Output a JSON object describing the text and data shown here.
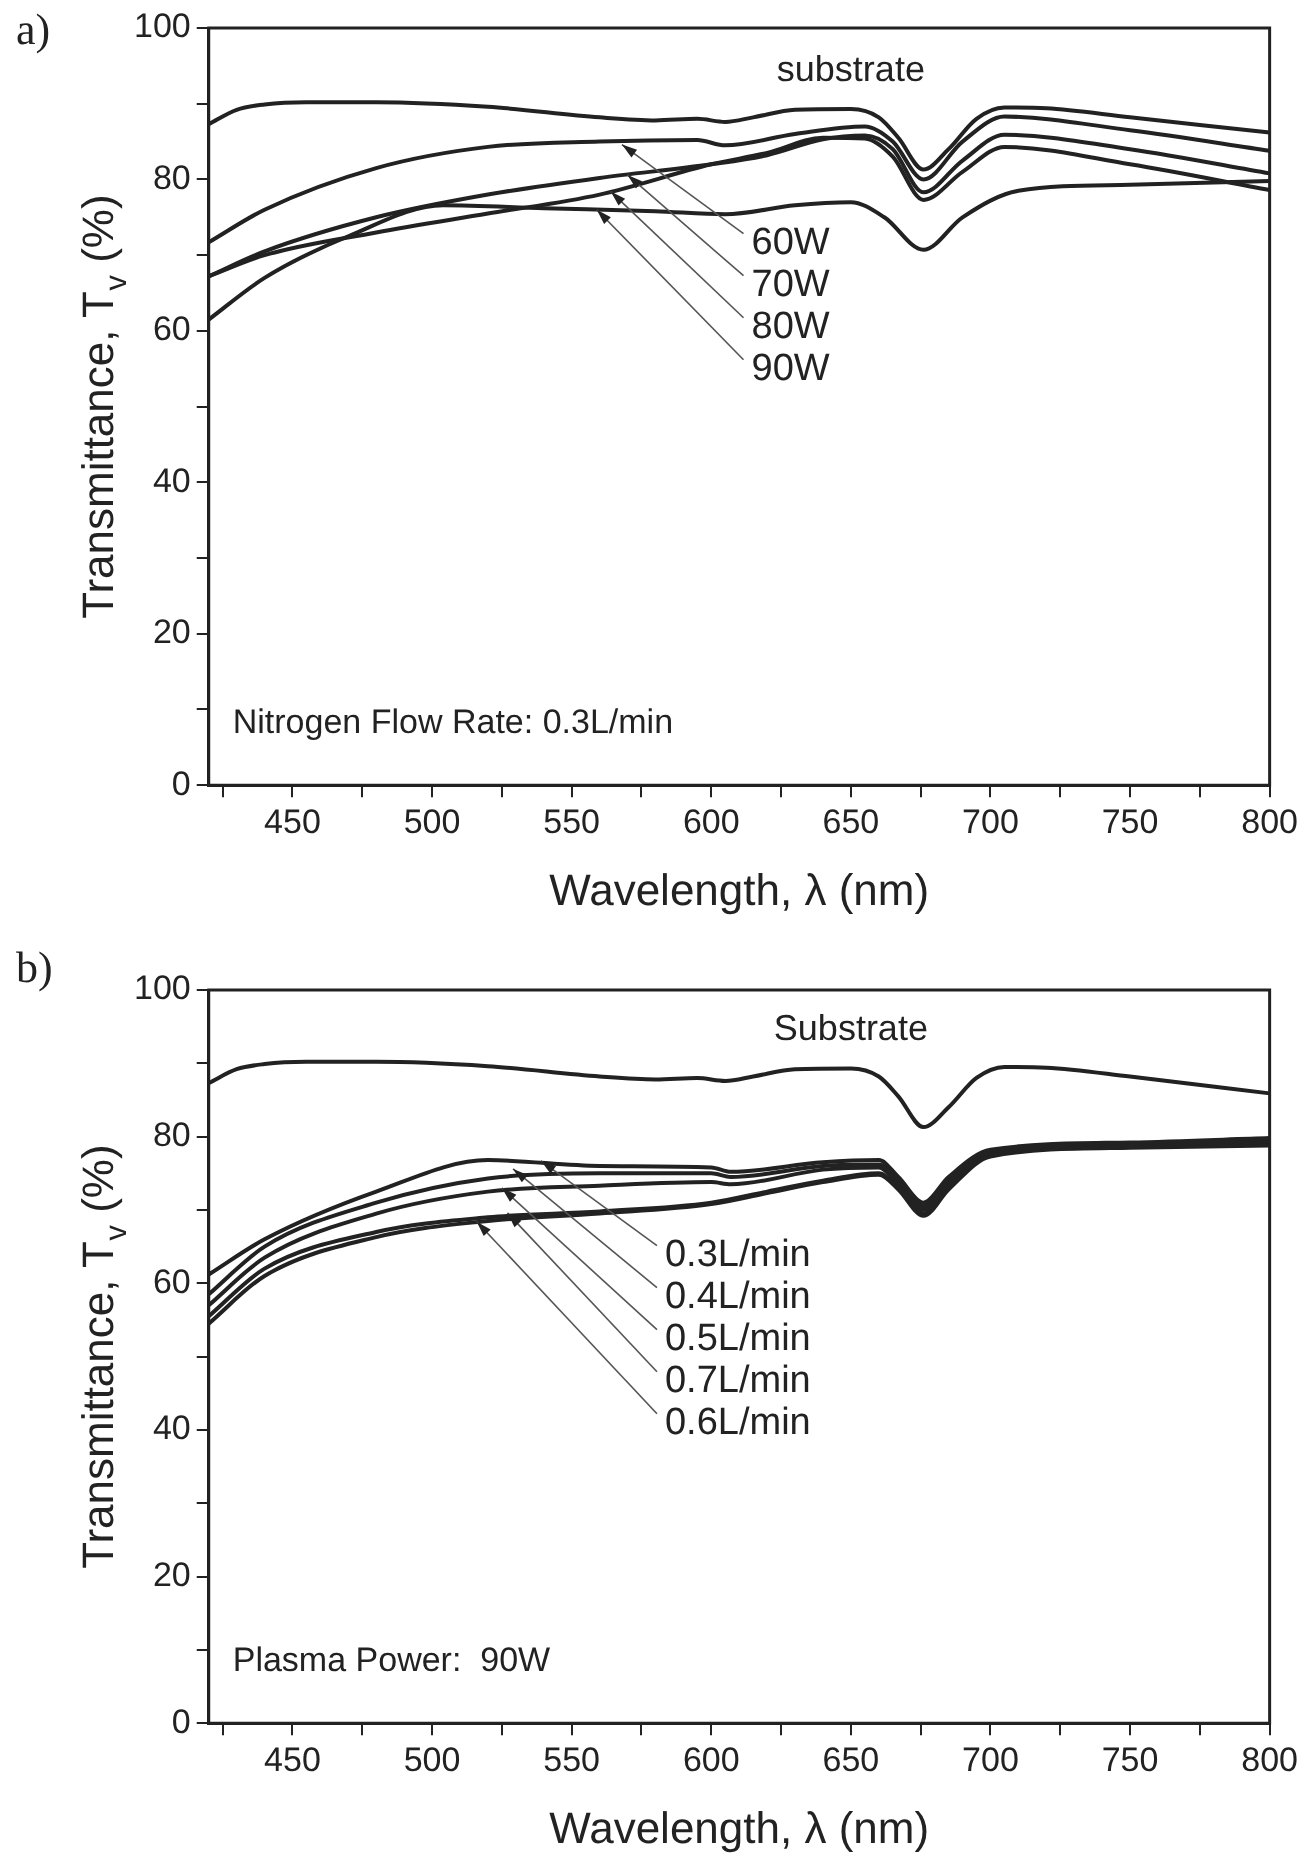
{
  "chart_data": [
    {
      "type": "line",
      "title": "a)",
      "xlabel": "Wavelength, λ (nm)",
      "ylabel": "Transmittance, T$_{v}$ (%)",
      "xlim": [
        420,
        800
      ],
      "ylim": [
        0,
        100
      ],
      "xticks": [
        {
          "value": 425,
          "label": null
        },
        450,
        {
          "value": 475,
          "label": null
        },
        500,
        {
          "value": 525,
          "label": null
        },
        550,
        {
          "value": 575,
          "label": null
        },
        600,
        {
          "value": 625,
          "label": null
        },
        650,
        {
          "value": 675,
          "label": null
        },
        700,
        {
          "value": 725,
          "label": null
        },
        750,
        {
          "value": 775,
          "label": null
        },
        800
      ],
      "yticks": [
        0,
        {
          "value": 10,
          "label": null
        },
        20,
        {
          "value": 30,
          "label": null
        },
        40,
        {
          "value": 50,
          "label": null
        },
        60,
        {
          "value": 70,
          "label": null
        },
        80,
        {
          "value": 90,
          "label": null
        },
        100
      ],
      "grid": false,
      "legend": false,
      "series": [
        {
          "name": "substrate",
          "color": "#222222",
          "x": [
            420,
            430,
            440,
            455,
            480,
            520,
            560,
            580,
            595,
            605,
            615,
            630,
            650,
            660,
            667,
            676,
            685,
            695,
            705,
            720,
            750,
            800
          ],
          "values": [
            87.3,
            89.2,
            89.9,
            90.2,
            90.2,
            89.6,
            88.2,
            87.8,
            88.0,
            87.6,
            88.2,
            89.2,
            89.3,
            88.2,
            85.5,
            81.3,
            84.0,
            88.0,
            89.5,
            89.4,
            88.2,
            86.2
          ]
        },
        {
          "color": "#222222",
          "x": [
            420,
            440,
            480,
            520,
            560,
            595,
            605,
            630,
            655,
            665,
            676,
            690,
            705,
            750,
            800
          ],
          "values": [
            71.7,
            76.0,
            81.5,
            84.3,
            85.0,
            85.2,
            84.5,
            86.0,
            87.0,
            85.0,
            80.0,
            85.0,
            88.3,
            86.5,
            83.8
          ]
        },
        {
          "color": "#222222",
          "x": [
            420,
            440,
            480,
            520,
            560,
            600,
            620,
            640,
            655,
            665,
            676,
            690,
            705,
            750,
            800
          ],
          "values": [
            67.2,
            70.5,
            75.0,
            78.0,
            80.2,
            82.0,
            83.2,
            85.3,
            85.8,
            84.0,
            78.3,
            82.5,
            85.9,
            84.0,
            80.8
          ]
        },
        {
          "color": "#222222",
          "x": [
            420,
            440,
            480,
            520,
            560,
            600,
            620,
            640,
            655,
            665,
            676,
            690,
            705,
            750,
            800
          ],
          "values": [
            67.2,
            70.0,
            73.0,
            75.5,
            78.0,
            82.0,
            83.5,
            85.5,
            85.4,
            83.0,
            77.3,
            81.0,
            84.3,
            82.0,
            78.6
          ]
        },
        {
          "color": "#222222",
          "x": [
            420,
            440,
            470,
            504,
            540,
            580,
            605,
            630,
            650,
            662,
            676,
            690,
            710,
            750,
            800
          ],
          "values": [
            61.5,
            67.0,
            72.5,
            76.6,
            76.2,
            75.8,
            75.4,
            76.6,
            77.0,
            75.0,
            70.7,
            75.0,
            78.5,
            79.3,
            79.8
          ]
        }
      ],
      "annotations": [
        {
          "text": "60W",
          "x": 568,
          "y": 84.6
        },
        {
          "text": "70W",
          "x": 570,
          "y": 80.6
        },
        {
          "text": "80W",
          "x": 564,
          "y": 78.4
        },
        {
          "text": "90W",
          "x": 559,
          "y": 76.0
        },
        "Nitrogen Flow Rate: 0.3L/min"
      ]
    },
    {
      "type": "line",
      "title": "b)",
      "xlabel": "Wavelength, λ (nm)",
      "ylabel": "Transmittance, T$_{v}$ (%)",
      "xlim": [
        420,
        800
      ],
      "ylim": [
        0,
        100
      ],
      "xticks": [
        {
          "value": 425,
          "label": null
        },
        450,
        {
          "value": 475,
          "label": null
        },
        500,
        {
          "value": 525,
          "label": null
        },
        550,
        {
          "value": 575,
          "label": null
        },
        600,
        {
          "value": 625,
          "label": null
        },
        650,
        {
          "value": 675,
          "label": null
        },
        700,
        {
          "value": 725,
          "label": null
        },
        750,
        {
          "value": 775,
          "label": null
        },
        800
      ],
      "yticks": [
        0,
        {
          "value": 10,
          "label": null
        },
        20,
        {
          "value": 30,
          "label": null
        },
        40,
        {
          "value": 50,
          "label": null
        },
        60,
        {
          "value": 70,
          "label": null
        },
        80,
        {
          "value": 90,
          "label": null
        },
        100
      ],
      "grid": false,
      "legend": false,
      "series": [
        {
          "name": "Substrate",
          "color": "#222222",
          "x": [
            420,
            430,
            440,
            455,
            480,
            520,
            560,
            580,
            595,
            605,
            615,
            630,
            650,
            660,
            667,
            676,
            685,
            695,
            705,
            720,
            750,
            800
          ],
          "values": [
            87.3,
            89.2,
            89.9,
            90.2,
            90.2,
            89.6,
            88.2,
            87.8,
            88.0,
            87.6,
            88.2,
            89.2,
            89.3,
            88.2,
            85.5,
            81.3,
            84.0,
            88.0,
            89.5,
            89.4,
            88.2,
            85.9
          ]
        },
        {
          "color": "#222222",
          "x": [
            420,
            440,
            480,
            520,
            560,
            600,
            607,
            640,
            660,
            667,
            676,
            685,
            700,
            750,
            800
          ],
          "values": [
            61.2,
            66.0,
            72.5,
            76.8,
            76.0,
            75.8,
            75.2,
            76.5,
            76.8,
            74.5,
            71.0,
            74.5,
            78.2,
            79.2,
            79.8
          ]
        },
        {
          "color": "#222222",
          "x": [
            420,
            440,
            480,
            520,
            560,
            600,
            607,
            640,
            660,
            667,
            676,
            685,
            700,
            750,
            800
          ],
          "values": [
            58.5,
            65.0,
            71.0,
            74.3,
            75.0,
            75.0,
            74.5,
            76.0,
            76.2,
            74.0,
            70.5,
            74.0,
            78.0,
            79.0,
            79.5
          ]
        },
        {
          "color": "#222222",
          "x": [
            420,
            440,
            480,
            520,
            560,
            600,
            607,
            640,
            660,
            667,
            676,
            685,
            700,
            750,
            800
          ],
          "values": [
            57.0,
            63.5,
            69.5,
            72.5,
            73.3,
            73.8,
            73.5,
            75.5,
            75.8,
            73.5,
            70.0,
            73.5,
            77.8,
            78.8,
            79.3
          ]
        },
        {
          "color": "#222222",
          "x": [
            420,
            440,
            480,
            520,
            560,
            600,
            620,
            640,
            660,
            667,
            676,
            685,
            700,
            750,
            800
          ],
          "values": [
            55.5,
            62.0,
            67.0,
            69.0,
            69.8,
            71.0,
            72.5,
            74.0,
            75.0,
            73.0,
            69.5,
            73.0,
            77.5,
            78.6,
            79.0
          ]
        },
        {
          "color": "#222222",
          "x": [
            420,
            440,
            480,
            520,
            560,
            600,
            620,
            640,
            660,
            667,
            676,
            685,
            700,
            750,
            800
          ],
          "values": [
            54.5,
            61.0,
            66.3,
            68.5,
            69.5,
            70.8,
            72.3,
            73.8,
            74.8,
            72.8,
            69.2,
            72.8,
            77.3,
            78.5,
            78.8
          ]
        }
      ],
      "annotations": [
        {
          "text": "0.3L/min",
          "x": 539,
          "y": 76.7
        },
        {
          "text": "0.4L/min",
          "x": 529,
          "y": 75.6
        },
        {
          "text": "0.5L/min",
          "x": 525,
          "y": 73.0
        },
        {
          "text": "0.7L/min",
          "x": 527,
          "y": 69.6
        },
        {
          "text": "0.6L/min",
          "x": 516,
          "y": 68.4
        },
        "Plasma Power:  90W"
      ]
    }
  ]
}
